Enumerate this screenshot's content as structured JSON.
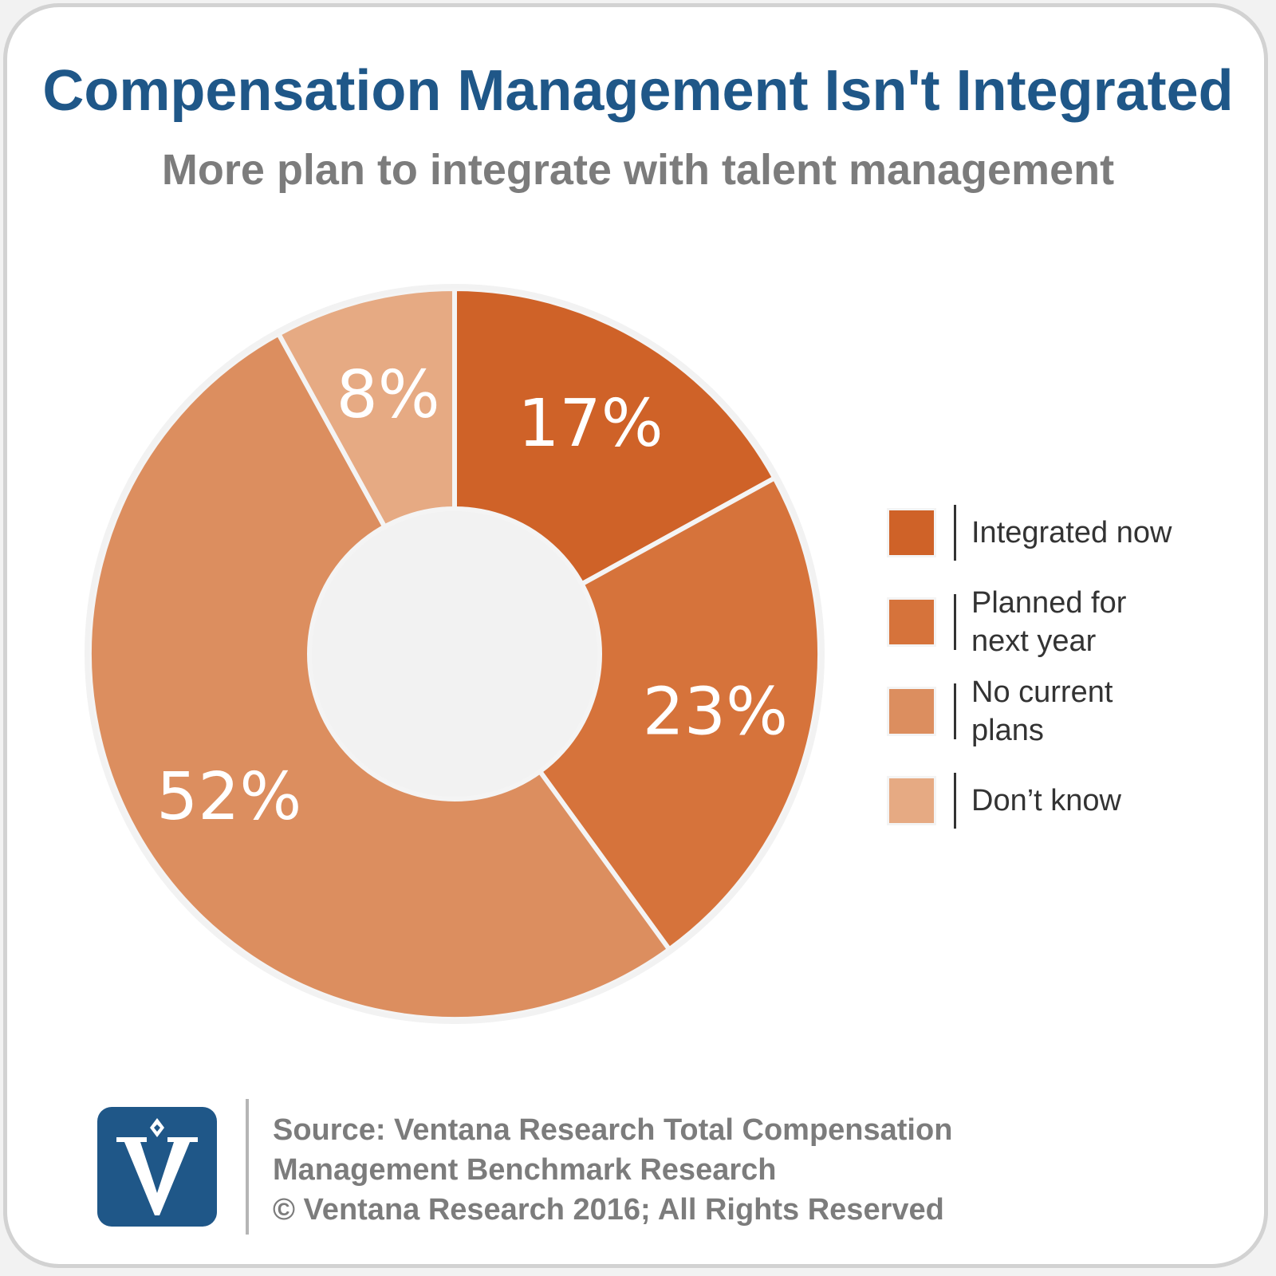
{
  "title": "Compensation Management Isn't Integrated",
  "subtitle": "More plan to integrate with talent management",
  "colors": {
    "integrated_now": "#cf6228",
    "planned": "#d6733b",
    "no_plans": "#dc8e5f",
    "dont_know": "#e6aa83",
    "hole": "#f2f2f2",
    "title": "#1f5788",
    "logo": "#1f5788"
  },
  "chart_data": {
    "type": "pie",
    "donut": true,
    "categories": [
      "Integrated now",
      "Planned for next year",
      "No current plans",
      "Don’t know"
    ],
    "values": [
      17,
      23,
      52,
      8
    ],
    "labels": [
      "17%",
      "23%",
      "52%",
      "8%"
    ],
    "legend_position": "right"
  },
  "legend": [
    {
      "line1": "Integrated now",
      "line2": ""
    },
    {
      "line1": "Planned for",
      "line2": "next year"
    },
    {
      "line1": "No current",
      "line2": "plans"
    },
    {
      "line1": "Don’t know",
      "line2": ""
    }
  ],
  "footer": {
    "logo_icon": "ventana-v-logo-icon",
    "line1": "Source: Ventana Research Total Compensation",
    "line2": "Management Benchmark Research",
    "line3": "© Ventana Research 2016; All Rights Reserved"
  }
}
